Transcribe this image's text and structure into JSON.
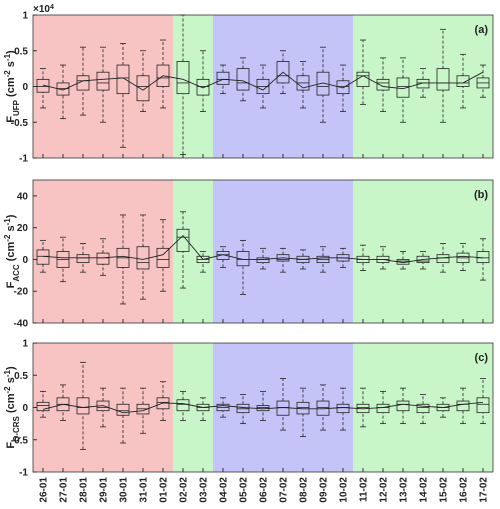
{
  "regions": [
    {
      "start": "26-01",
      "end": "01-02",
      "color": "#f8c3c3"
    },
    {
      "start": "02-02",
      "end": "03-02",
      "color": "#c8f6c8"
    },
    {
      "start": "04-02",
      "end": "10-02",
      "color": "#c4c4f8"
    },
    {
      "start": "11-02",
      "end": "17-02",
      "color": "#c8f6c8"
    }
  ],
  "chart_data": [
    {
      "type": "box",
      "panel_label": "(a)",
      "ylabel": {
        "base": "F",
        "sub": "UFP",
        "open": " (cm",
        "exp1": "-2",
        "mid": " s",
        "exp2": "-1",
        "close": ")"
      },
      "scale_label": {
        "base": "×10",
        "exp": "4"
      },
      "ylim": [
        -1,
        1
      ],
      "yticks": [
        -1,
        -0.5,
        0,
        0.5,
        1
      ],
      "low": [
        -0.3,
        -0.45,
        -0.4,
        -0.5,
        -0.85,
        -0.35,
        -0.3,
        -0.95,
        -0.35,
        -0.1,
        -0.2,
        -0.3,
        -0.1,
        -0.3,
        -0.5,
        -0.35,
        -0.25,
        -0.35,
        -0.5,
        -0.15,
        -0.5,
        -0.3,
        -0.15
      ],
      "q1": [
        -0.08,
        -0.12,
        -0.05,
        -0.05,
        -0.1,
        -0.2,
        0,
        -0.1,
        -0.12,
        0.03,
        -0.05,
        -0.1,
        0.05,
        -0.05,
        -0.12,
        -0.1,
        0,
        -0.05,
        -0.15,
        -0.02,
        -0.05,
        0,
        -0.02
      ],
      "median": [
        0,
        -0.03,
        0.08,
        0.05,
        0.12,
        0,
        0.12,
        0.05,
        0,
        0.1,
        0.05,
        0,
        0.15,
        0.05,
        0,
        0,
        0.15,
        0.05,
        0,
        0.05,
        0.05,
        0.05,
        0.05
      ],
      "q3": [
        0.1,
        0.05,
        0.15,
        0.2,
        0.3,
        0.15,
        0.3,
        0.35,
        0.1,
        0.2,
        0.25,
        0.1,
        0.35,
        0.15,
        0.2,
        0.08,
        0.2,
        0.1,
        0.12,
        0.1,
        0.25,
        0.15,
        0.12
      ],
      "high": [
        0.25,
        0.3,
        0.55,
        0.55,
        0.6,
        0.5,
        0.65,
        1.0,
        0.5,
        0.3,
        0.4,
        0.3,
        0.5,
        0.35,
        0.55,
        0.3,
        0.65,
        0.4,
        0.4,
        0.25,
        0.8,
        0.45,
        0.3
      ],
      "mean": [
        0.02,
        -0.05,
        0.08,
        0.1,
        0.12,
        -0.05,
        0.15,
        0.1,
        -0.02,
        0.1,
        0.08,
        -0.05,
        0.2,
        -0.02,
        0.05,
        -0.02,
        0.15,
        0,
        -0.03,
        0.05,
        0.05,
        0.05,
        0.2
      ]
    },
    {
      "type": "box",
      "panel_label": "(b)",
      "ylabel": {
        "base": "F",
        "sub": "ACC",
        "open": " (cm",
        "exp1": "-2",
        "mid": " s",
        "exp2": "-1",
        "close": ")"
      },
      "ylim": [
        -40,
        50
      ],
      "yticks": [
        -40,
        -20,
        0,
        20,
        40
      ],
      "low": [
        -8,
        -14,
        -8,
        -10,
        -28,
        -25,
        -20,
        -18,
        -8,
        -5,
        -22,
        -6,
        -8,
        -6,
        -8,
        -5,
        -7,
        -6,
        -6,
        -6,
        -8,
        -7,
        -13
      ],
      "q1": [
        -3,
        -5,
        -2,
        -3,
        -5,
        -6,
        -5,
        5,
        -2,
        0,
        -4,
        -2,
        -1,
        -2,
        -2,
        -1,
        -2,
        -2,
        -3,
        -2,
        -2,
        -2,
        -2
      ],
      "median": [
        2,
        0,
        1,
        1,
        1,
        -2,
        0,
        14,
        0,
        3,
        0,
        0,
        0,
        0,
        0,
        1,
        0,
        0,
        -1,
        -1,
        1,
        1,
        1
      ],
      "q3": [
        6,
        5,
        3,
        4,
        7,
        8,
        7,
        19,
        2,
        5,
        5,
        1,
        3,
        2,
        2,
        3,
        2,
        2,
        0,
        2,
        3,
        4,
        5
      ],
      "high": [
        12,
        14,
        10,
        13,
        28,
        28,
        25,
        30,
        5,
        8,
        12,
        7,
        7,
        6,
        8,
        7,
        9,
        8,
        5,
        5,
        10,
        10,
        13
      ],
      "mean": [
        2,
        1,
        1,
        1,
        2,
        0,
        3,
        15,
        0,
        3,
        0,
        0,
        1,
        0,
        1,
        1,
        0,
        0,
        -2,
        0,
        1,
        2,
        1
      ]
    },
    {
      "type": "box",
      "panel_label": "(c)",
      "ylabel": {
        "base": "F",
        "sub": "Q-CRS",
        "open": " (cm",
        "exp1": "-2",
        "mid": " s",
        "exp2": "-1",
        "close": ")"
      },
      "ylim": [
        -1,
        1
      ],
      "yticks": [
        -1,
        -0.5,
        0,
        0.5,
        1
      ],
      "categories": [
        "26-01",
        "27-01",
        "28-01",
        "29-01",
        "30-01",
        "31-01",
        "01-02",
        "02-02",
        "03-02",
        "04-02",
        "05-02",
        "06-02",
        "07-02",
        "08-02",
        "09-02",
        "10-02",
        "11-02",
        "12-02",
        "13-02",
        "14-02",
        "15-02",
        "16-02",
        "17-02"
      ],
      "low": [
        -0.15,
        -0.2,
        -0.65,
        -0.3,
        -0.55,
        -0.4,
        -0.2,
        -0.2,
        -0.2,
        -0.15,
        -0.25,
        -0.2,
        -0.35,
        -0.45,
        -0.35,
        -0.35,
        -0.3,
        -0.25,
        -0.25,
        -0.25,
        -0.15,
        -0.25,
        -0.25
      ],
      "q1": [
        -0.05,
        -0.05,
        -0.1,
        -0.05,
        -0.12,
        -0.1,
        -0.02,
        -0.05,
        -0.05,
        -0.05,
        -0.08,
        -0.05,
        -0.12,
        -0.1,
        -0.12,
        -0.08,
        -0.08,
        -0.08,
        -0.05,
        -0.08,
        -0.05,
        -0.05,
        -0.08
      ],
      "median": [
        0.03,
        0.05,
        0,
        0,
        -0.05,
        -0.02,
        0.08,
        0.05,
        0,
        0,
        -0.02,
        0,
        0,
        0,
        0,
        0,
        0,
        0,
        0.05,
        0,
        0,
        0.05,
        0.05
      ],
      "q3": [
        0.08,
        0.15,
        0.15,
        0.1,
        0.05,
        0.05,
        0.15,
        0.12,
        0.05,
        0.05,
        0.05,
        0.03,
        0.1,
        0.08,
        0.1,
        0.05,
        0.05,
        0.05,
        0.1,
        0.05,
        0.05,
        0.1,
        0.15
      ],
      "high": [
        0.25,
        0.35,
        0.7,
        0.3,
        0.3,
        0.3,
        0.4,
        0.25,
        0.15,
        0.15,
        0.2,
        0.25,
        0.45,
        0.3,
        0.35,
        0.3,
        0.3,
        0.25,
        0.3,
        0.2,
        0.15,
        0.3,
        0.45
      ],
      "mean": [
        -0.03,
        0.05,
        0,
        0.03,
        -0.08,
        -0.05,
        0.07,
        0.06,
        0,
        0.03,
        0,
        -0.02,
        0,
        -0.02,
        -0.02,
        0,
        -0.02,
        0,
        0.05,
        0.02,
        0,
        0.05,
        0.08
      ]
    }
  ]
}
